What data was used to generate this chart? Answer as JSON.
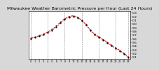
{
  "title": "Milwaukee Weather Barometric Pressure per Hour (Last 24 Hours)",
  "hours": [
    0,
    1,
    2,
    3,
    4,
    5,
    6,
    7,
    8,
    9,
    10,
    11,
    12,
    13,
    14,
    15,
    16,
    17,
    18,
    19,
    20,
    21,
    22,
    23
  ],
  "pressure_red": [
    29.62,
    29.64,
    29.68,
    29.72,
    29.78,
    29.85,
    29.94,
    30.05,
    30.14,
    30.2,
    30.22,
    30.18,
    30.1,
    29.98,
    29.84,
    29.72,
    29.65,
    29.58,
    29.5,
    29.42,
    29.35,
    29.28,
    29.2,
    29.1
  ],
  "pressure_black": [
    29.6,
    29.63,
    29.66,
    29.7,
    29.76,
    29.82,
    29.91,
    30.02,
    30.12,
    30.18,
    30.2,
    30.16,
    30.08,
    29.96,
    29.82,
    29.7,
    29.63,
    29.56,
    29.48,
    29.4,
    29.33,
    29.26,
    29.18,
    29.08
  ],
  "ylim": [
    29.05,
    30.35
  ],
  "yticks": [
    29.1,
    29.2,
    29.3,
    29.4,
    29.5,
    29.6,
    29.7,
    29.8,
    29.9,
    30.0,
    30.1,
    30.2,
    30.3
  ],
  "ytick_labels": [
    "9.1",
    "9.2",
    "9.3",
    "9.4",
    "9.5",
    "9.6",
    "9.7",
    "9.8",
    "9.9",
    "0.0",
    "0.1",
    "0.2",
    "0.3"
  ],
  "grid_positions": [
    0,
    4,
    8,
    12,
    16,
    20,
    23
  ],
  "bg_color": "#d8d8d8",
  "plot_bg": "#ffffff",
  "red_color": "#dd0000",
  "black_color": "#000000",
  "title_fontsize": 4.5,
  "tick_fontsize": 3.2
}
